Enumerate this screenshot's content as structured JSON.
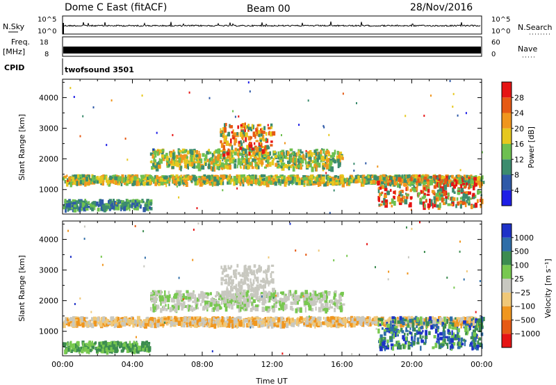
{
  "header": {
    "title": "Dome C East (fitACF)",
    "beam": "Beam 00",
    "date": "28/Nov/2016"
  },
  "nsky_panel": {
    "label": "N.Sky",
    "left_ticks": [
      "10^5",
      "10^0"
    ],
    "right_ticks": [
      "10^5",
      "10^0"
    ],
    "right_label": "N.Search"
  },
  "freq_panel": {
    "label_line1": "Freq.",
    "label_line2": "[MHz]",
    "left_ticks": [
      "18",
      "8"
    ],
    "right_ticks": [
      "60",
      "0"
    ],
    "right_label": "Nave"
  },
  "cpid_panel": {
    "label": "CPID",
    "program": "twofsound 3501"
  },
  "chart_data": [
    {
      "type": "heatmap",
      "name": "power",
      "ylabel": "Slant Range [km]",
      "xlabel": "",
      "yticks": [
        "1000",
        "2000",
        "3000",
        "4000"
      ],
      "ylim": [
        200,
        4600
      ],
      "colorbar": {
        "label": "Power [dB]",
        "ticks": [
          "4",
          "8",
          "12",
          "16",
          "20",
          "24",
          "28"
        ],
        "colors": [
          "#1e1ee6",
          "#2f5aa8",
          "#3c8c6e",
          "#6ec050",
          "#e6c81e",
          "#f0961e",
          "#e65a14",
          "#e61414"
        ]
      },
      "bands": [
        {
          "t": [
            0,
            24
          ],
          "r": [
            1250,
            1500
          ],
          "c": [
            3,
            4,
            5,
            2
          ]
        },
        {
          "t": [
            5,
            16
          ],
          "r": [
            1750,
            2350
          ],
          "c": [
            3,
            4,
            2,
            5
          ]
        },
        {
          "t": [
            9,
            12
          ],
          "r": [
            2200,
            3200
          ],
          "c": [
            4,
            5,
            6,
            7,
            2
          ]
        },
        {
          "t": [
            18,
            24
          ],
          "r": [
            500,
            1500
          ],
          "c": [
            5,
            6,
            7,
            3,
            2
          ]
        },
        {
          "t": [
            0,
            5
          ],
          "r": [
            400,
            700
          ],
          "c": [
            2,
            1,
            3
          ]
        }
      ]
    },
    {
      "type": "heatmap",
      "name": "velocity",
      "ylabel": "Slant Range [km]",
      "xlabel": "Time UT",
      "xticks": [
        "00:00",
        "04:00",
        "08:00",
        "12:00",
        "16:00",
        "20:00",
        "00:00"
      ],
      "yticks": [
        "1000",
        "2000",
        "3000",
        "4000"
      ],
      "ylim": [
        200,
        4600
      ],
      "colorbar": {
        "label": "Velocity [m s⁻¹]",
        "ticks": [
          "1000",
          "500",
          "100",
          "25",
          "−25",
          "−100",
          "−500",
          "−1000"
        ],
        "colors": [
          "#1e32c8",
          "#2f6ea8",
          "#3c8c50",
          "#78c850",
          "#c8c8c0",
          "#f0c878",
          "#f0961e",
          "#e65a14",
          "#e61414"
        ]
      },
      "bands": [
        {
          "t": [
            0,
            24
          ],
          "r": [
            1250,
            1500
          ],
          "c": [
            4,
            5,
            6
          ]
        },
        {
          "t": [
            5,
            16
          ],
          "r": [
            1750,
            2350
          ],
          "c": [
            4,
            4,
            3
          ]
        },
        {
          "t": [
            9,
            12
          ],
          "r": [
            2200,
            3200
          ],
          "c": [
            4,
            4
          ]
        },
        {
          "t": [
            18,
            24
          ],
          "r": [
            500,
            1500
          ],
          "c": [
            2,
            1,
            0,
            3
          ]
        },
        {
          "t": [
            0,
            5
          ],
          "r": [
            400,
            700
          ],
          "c": [
            2,
            3
          ]
        }
      ]
    }
  ]
}
